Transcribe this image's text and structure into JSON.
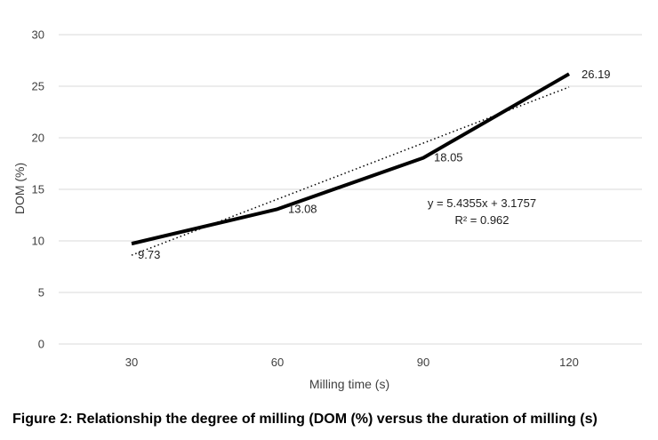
{
  "chart_data": {
    "type": "line",
    "categories": [
      "30",
      "60",
      "90",
      "120"
    ],
    "x": [
      30,
      60,
      90,
      120
    ],
    "series": [
      {
        "values": [
          9.73,
          13.08,
          18.05,
          26.19
        ],
        "data_labels": [
          "9.73",
          "13.08",
          "18.05",
          "26.19"
        ]
      }
    ],
    "trendline": {
      "type": "linear",
      "slope": 5.4355,
      "intercept": 3.1757,
      "equation": "y = 5.4355x + 3.1757",
      "r_squared": "R² = 0.962"
    },
    "xlabel": "Milling time (s)",
    "ylabel": "DOM (%)",
    "ylim": [
      0,
      30
    ],
    "yticks": [
      "0",
      "5",
      "10",
      "15",
      "20",
      "25",
      "30"
    ],
    "grid": true,
    "legend": "none",
    "line_color": "#000000",
    "grid_color": "#d9d9d9"
  },
  "caption": "Figure 2: Relationship the degree of milling (DOM (%) versus the duration of milling (s)"
}
